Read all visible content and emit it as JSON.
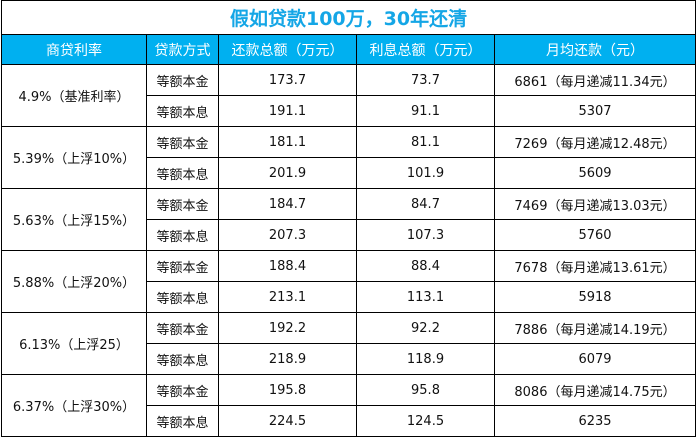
{
  "title": "假如贷款100万，30年还清",
  "headers": [
    "商贷利率",
    "贷款方式",
    "还款总额（万元）",
    "利息总额（万元）",
    "月均还款（元）"
  ],
  "groups": [
    {
      "rate": "4.9%（基准利率）",
      "rows": [
        [
          "等额本金",
          "173.7",
          "73.7",
          "6861（每月递减11.34元）"
        ],
        [
          "等额本息",
          "191.1",
          "91.1",
          "5307"
        ]
      ]
    },
    {
      "rate": "5.39%（上浮10%）",
      "rows": [
        [
          "等额本金",
          "181.1",
          "81.1",
          "7269（每月递减12.48元）"
        ],
        [
          "等额本息",
          "201.9",
          "101.9",
          "5609"
        ]
      ]
    },
    {
      "rate": "5.63%（上浮15%）",
      "rows": [
        [
          "等额本金",
          "184.7",
          "84.7",
          "7469（每月递减13.03元）"
        ],
        [
          "等额本息",
          "207.3",
          "107.3",
          "5760"
        ]
      ]
    },
    {
      "rate": "5.88%（上浮20%）",
      "rows": [
        [
          "等额本金",
          "188.4",
          "88.4",
          "7678（每月递减13.61元）"
        ],
        [
          "等额本息",
          "213.1",
          "113.1",
          "5918"
        ]
      ]
    },
    {
      "rate": "6.13%（上浮25）",
      "rows": [
        [
          "等额本金",
          "192.2",
          "92.2",
          "7886（每月递减14.19元）"
        ],
        [
          "等额本息",
          "218.9",
          "118.9",
          "6079"
        ]
      ]
    },
    {
      "rate": "6.37%（上浮30%）",
      "rows": [
        [
          "等额本金",
          "195.8",
          "95.8",
          "8086（每月递减14.75元）"
        ],
        [
          "等额本息",
          "224.5",
          "124.5",
          "6235"
        ]
      ]
    }
  ]
}
